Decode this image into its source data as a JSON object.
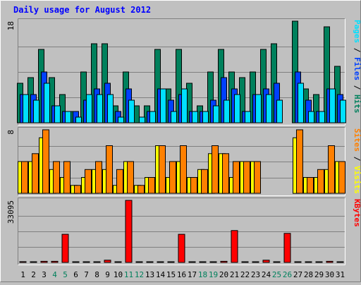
{
  "chart_data": {
    "type": "bar",
    "title": "Daily usage for August 2012",
    "categories": [
      "1",
      "2",
      "3",
      "4",
      "5",
      "6",
      "7",
      "8",
      "9",
      "10",
      "11",
      "12",
      "13",
      "14",
      "15",
      "16",
      "17",
      "18",
      "19",
      "20",
      "21",
      "22",
      "23",
      "24",
      "25",
      "26",
      "27",
      "28",
      "29",
      "30",
      "31"
    ],
    "weekend_days": [
      4,
      5,
      11,
      12,
      18,
      19,
      25,
      26
    ],
    "panels": [
      {
        "name": "hits-files-pages",
        "scale_label": "18",
        "ymax": 18,
        "series": [
          {
            "name": "Hits",
            "color": "#00805c",
            "values": [
              7,
              8,
              13,
              8,
              5,
              2,
              9,
              14,
              14,
              3,
              9,
              3,
              3,
              13,
              6,
              13,
              7,
              3,
              9,
              13,
              9,
              8,
              9,
              13,
              14,
              0,
              18,
              6,
              5,
              17,
              10
            ]
          },
          {
            "name": "Files",
            "color": "#0040ff",
            "values": [
              5,
              5,
              9,
              3,
              2,
              2,
              4,
              6,
              7,
              2,
              6,
              0,
              2,
              6,
              4,
              5,
              2,
              2,
              4,
              8,
              6,
              2,
              5,
              6,
              7,
              0,
              9,
              4,
              2,
              6,
              5
            ]
          },
          {
            "name": "Pages",
            "color": "#00e0ff",
            "values": [
              5,
              4,
              7,
              3,
              2,
              1,
              5,
              5,
              5,
              1,
              4,
              1,
              2,
              6,
              2,
              6,
              2,
              2,
              3,
              4,
              5,
              2,
              5,
              5,
              4,
              0,
              7,
              2,
              2,
              6,
              4
            ]
          }
        ]
      },
      {
        "name": "sites-visits",
        "scale_label": "8",
        "ymax": 8,
        "series": [
          {
            "name": "Visits",
            "color": "#ffff00",
            "values": [
              4,
              4,
              7,
              3,
              2,
              1,
              2,
              3,
              3,
              1,
              4,
              1,
              2,
              6,
              2,
              4,
              2,
              3,
              5,
              5,
              2,
              4,
              4,
              0,
              0,
              0,
              7,
              2,
              2,
              3,
              4
            ]
          },
          {
            "name": "Sites",
            "color": "#ff8000",
            "values": [
              4,
              5,
              8,
              4,
              4,
              1,
              3,
              4,
              6,
              3,
              4,
              1,
              2,
              6,
              4,
              6,
              2,
              3,
              6,
              5,
              4,
              4,
              4,
              0,
              0,
              0,
              8,
              2,
              3,
              6,
              4
            ]
          }
        ]
      },
      {
        "name": "kbytes",
        "scale_label": "33095",
        "ymax": 33095,
        "series": [
          {
            "name": "KBytes",
            "color": "#ff0000",
            "values": [
              400,
              300,
              600,
              600,
              15000,
              300,
              300,
              300,
              1200,
              300,
              33095,
              300,
              300,
              300,
              300,
              15000,
              300,
              300,
              300,
              600,
              17000,
              300,
              300,
              1200,
              300,
              15500,
              300,
              300,
              300,
              600,
              300
            ]
          }
        ]
      }
    ],
    "legend_placement": "right-vertical",
    "grid": true
  }
}
